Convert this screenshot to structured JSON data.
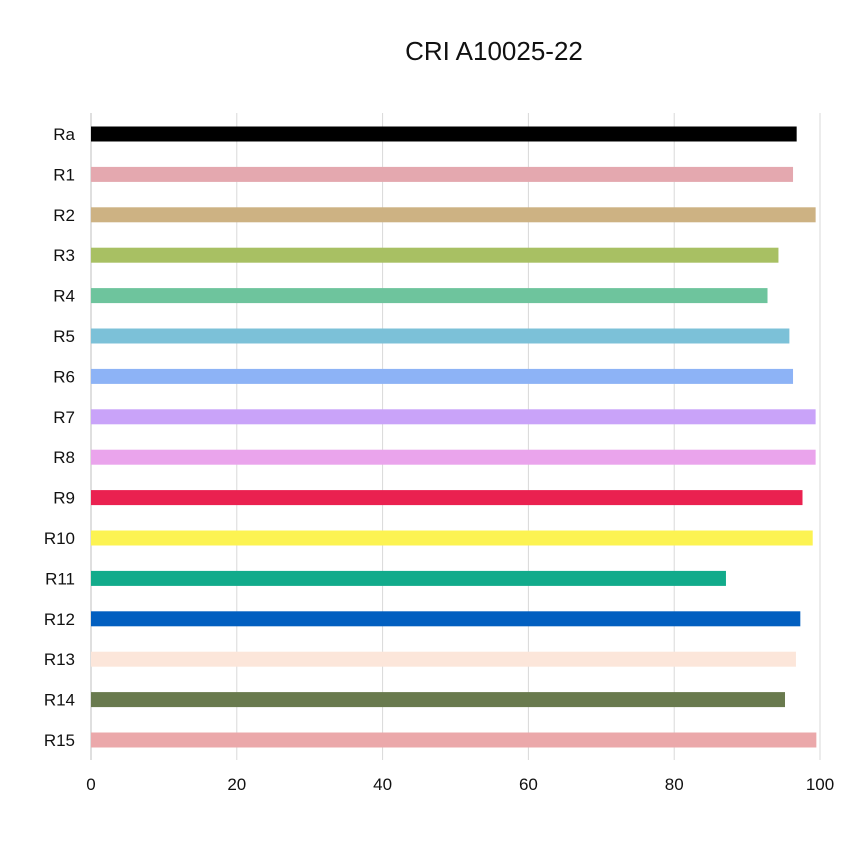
{
  "chart_data": {
    "type": "bar",
    "orientation": "horizontal",
    "title": "CRI A10025-22",
    "xlabel": "",
    "ylabel": "",
    "xlim": [
      0,
      100
    ],
    "x_ticks": [
      "0",
      "20",
      "40",
      "60",
      "80",
      "100"
    ],
    "grid": "vertical",
    "categories": [
      "Ra",
      "R1",
      "R2",
      "R3",
      "R4",
      "R5",
      "R6",
      "R7",
      "R8",
      "R9",
      "R10",
      "R11",
      "R12",
      "R13",
      "R14",
      "R15"
    ],
    "values": [
      96.8,
      96.3,
      99.4,
      94.3,
      92.8,
      95.8,
      96.3,
      99.4,
      99.4,
      97.6,
      99.0,
      87.1,
      97.3,
      96.7,
      95.2,
      99.5
    ],
    "colors": [
      "#000000",
      "#e4a8af",
      "#cdb283",
      "#a8c063",
      "#6ec49d",
      "#7cc1d8",
      "#8db3f6",
      "#c9a3f9",
      "#eaa4ec",
      "#ea2150",
      "#fcf352",
      "#12ab8b",
      "#025fc0",
      "#fce6da",
      "#697a4e",
      "#eba8aa"
    ]
  }
}
